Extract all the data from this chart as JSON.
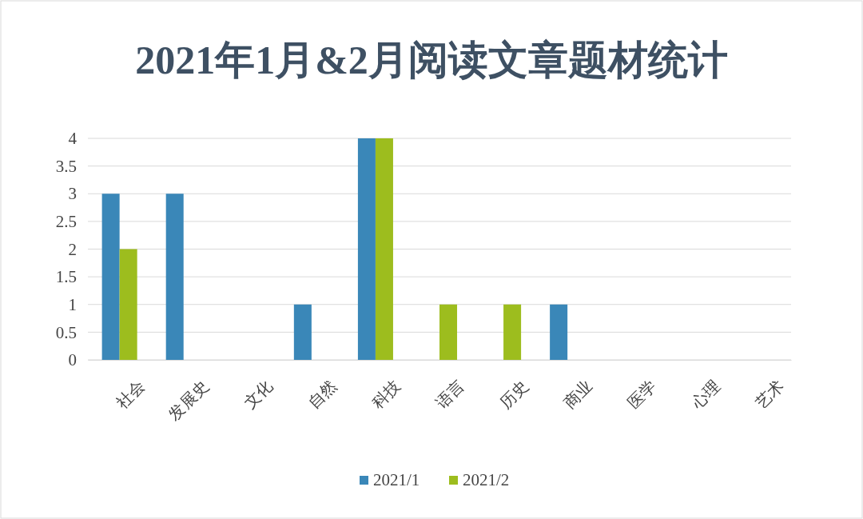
{
  "chart_data": {
    "type": "bar",
    "title": "2021年1月&2月阅读文章题材统计",
    "categories": [
      "社会",
      "发展史",
      "文化",
      "自然",
      "科技",
      "语言",
      "历史",
      "商业",
      "医学",
      "心理",
      "艺术"
    ],
    "series": [
      {
        "name": "2021/1",
        "color": "#3a87b8",
        "values": [
          3,
          3,
          0,
          1,
          4,
          0,
          0,
          1,
          0,
          0,
          0
        ]
      },
      {
        "name": "2021/2",
        "color": "#9dbd1e",
        "values": [
          2,
          0,
          0,
          0,
          4,
          1,
          1,
          0,
          0,
          0,
          0
        ]
      }
    ],
    "ylim": [
      0,
      4
    ],
    "yticks": [
      0,
      0.5,
      1,
      1.5,
      2,
      2.5,
      3,
      3.5,
      4
    ],
    "grid": "y",
    "legend": "bottom"
  }
}
